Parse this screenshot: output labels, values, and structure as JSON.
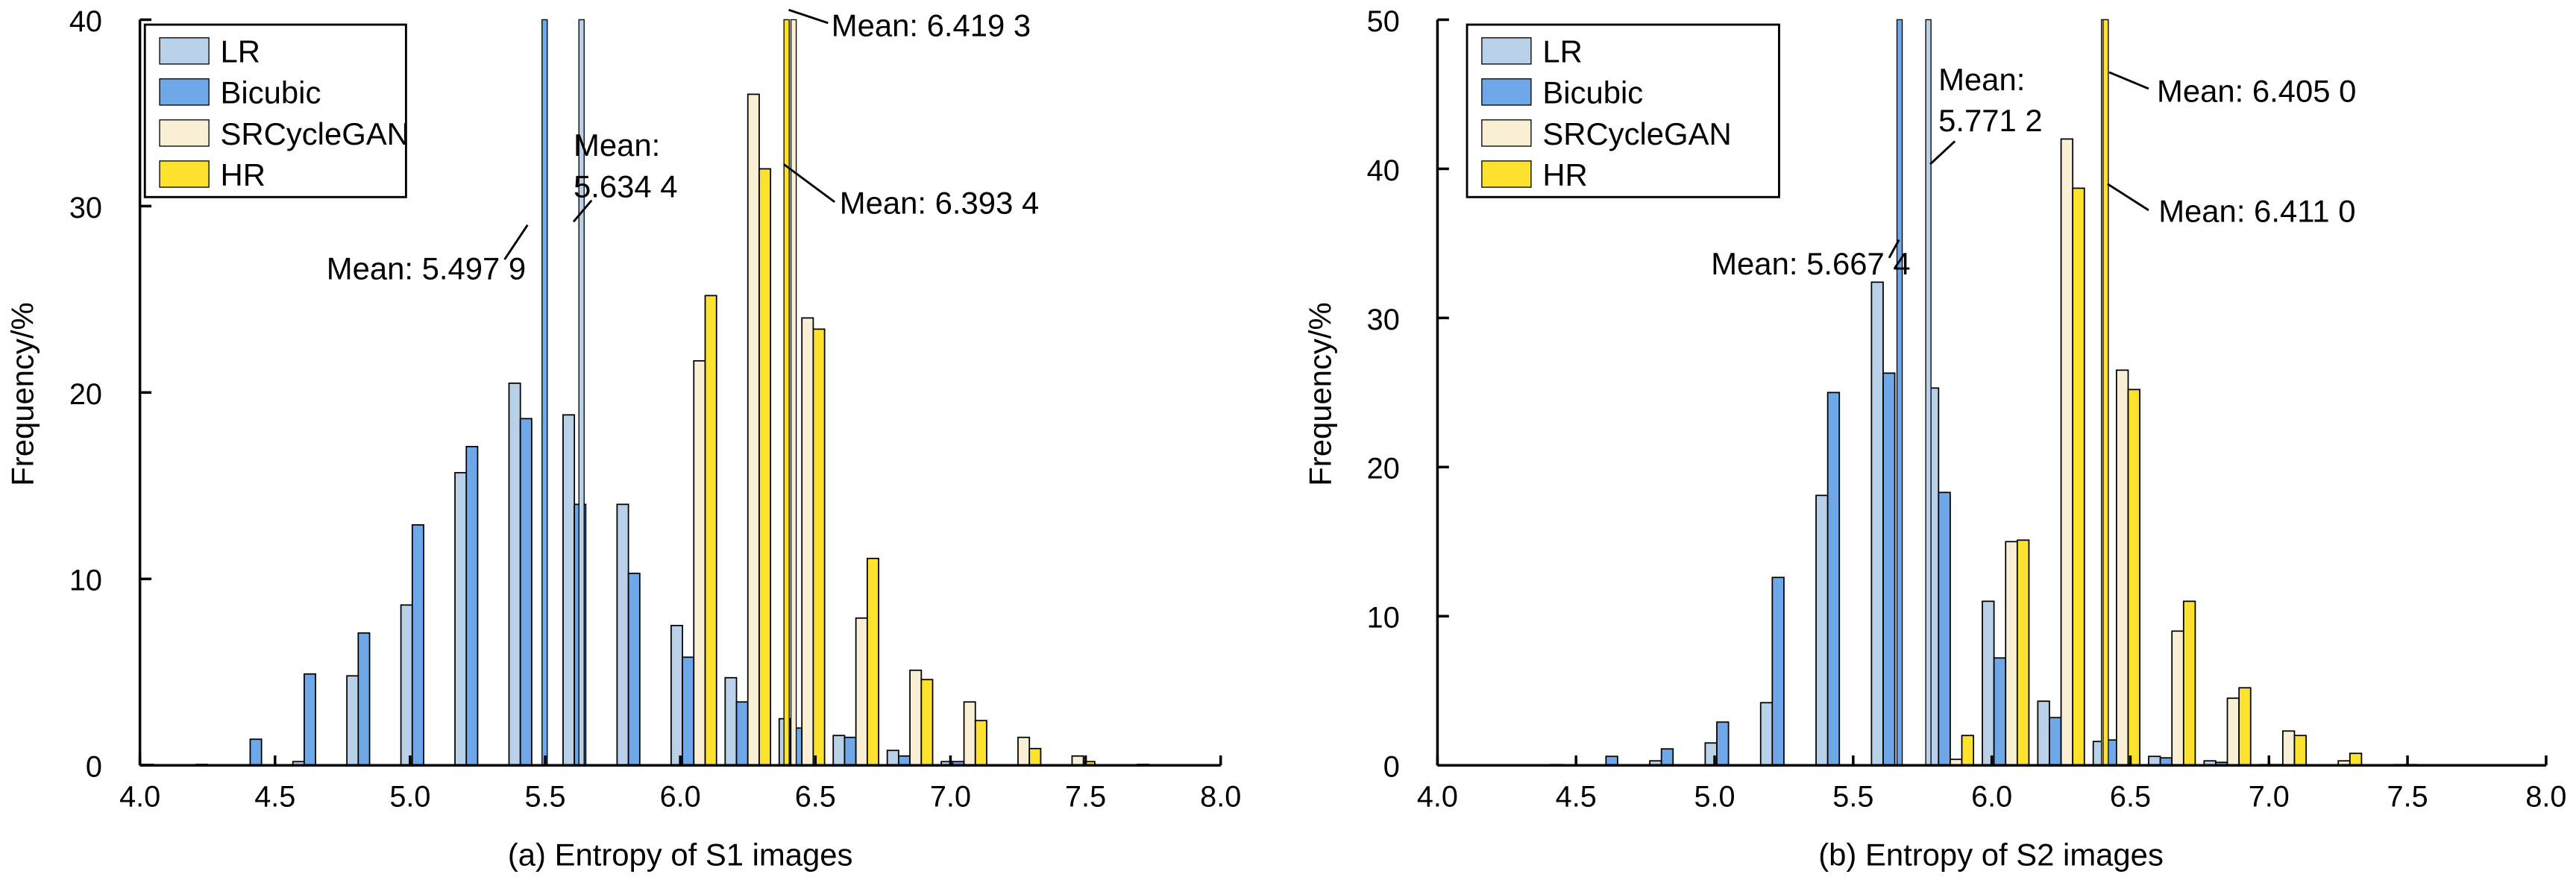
{
  "chart_data": [
    {
      "type": "bar",
      "title": "(a) Entropy of S1 images",
      "xlabel": "(a) Entropy of S1 images",
      "ylabel": "Frequency/%",
      "xlim": [
        4.0,
        8.0
      ],
      "ylim": [
        0,
        40
      ],
      "xticks": [
        "4.0",
        "4.5",
        "5.0",
        "5.5",
        "6.0",
        "6.5",
        "7.0",
        "7.5",
        "8.0"
      ],
      "yticks": [
        "0",
        "10",
        "20",
        "30",
        "40"
      ],
      "legend_position": "top-left",
      "grid": false,
      "bin_centers": [
        4.05,
        4.25,
        4.45,
        4.65,
        4.85,
        5.05,
        5.25,
        5.45,
        5.65,
        5.85,
        6.05,
        6.25,
        6.45,
        6.65,
        6.85,
        7.05,
        7.25,
        7.45,
        7.65,
        7.85
      ],
      "series": [
        {
          "name": "LR",
          "color": "#b9d1e8",
          "mean": 5.6344,
          "values": [
            0,
            0,
            0,
            0.2,
            4.8,
            8.6,
            15.7,
            20.5,
            18.8,
            14.0,
            7.5,
            4.7,
            2.5,
            1.6,
            0.8,
            0.2,
            0,
            0,
            0,
            0
          ]
        },
        {
          "name": "Bicubic",
          "color": "#6ea8e8",
          "mean": 5.4979,
          "values": [
            0.05,
            0.05,
            1.4,
            4.9,
            7.1,
            12.9,
            17.1,
            18.6,
            14.0,
            10.3,
            5.8,
            3.4,
            2.0,
            1.5,
            0.5,
            0.2,
            0,
            0,
            0,
            0
          ]
        },
        {
          "name": "SRCycleGAN",
          "color": "#f9efd4",
          "mean": 6.4193,
          "values": [
            0,
            0,
            0,
            0,
            0,
            0,
            0,
            0,
            0,
            0,
            21.7,
            36.0,
            24.0,
            7.9,
            5.1,
            3.4,
            1.5,
            0.5,
            0,
            0
          ]
        },
        {
          "name": "HR",
          "color": "#fce22c",
          "mean": 6.3934,
          "values": [
            0,
            0,
            0,
            0,
            0,
            0,
            0,
            0,
            0,
            0,
            25.2,
            32.0,
            23.4,
            11.1,
            4.6,
            2.4,
            0.9,
            0.2,
            0.05,
            0
          ]
        }
      ],
      "annotations": [
        {
          "series": "Bicubic",
          "lines": [
            "Mean: 5.497 9"
          ]
        },
        {
          "series": "LR",
          "lines": [
            "Mean:",
            "5.634 4"
          ]
        },
        {
          "series": "SRCycleGAN",
          "lines": [
            "Mean: 6.419 3"
          ]
        },
        {
          "series": "HR",
          "lines": [
            "Mean: 6.393 4"
          ]
        }
      ]
    },
    {
      "type": "bar",
      "title": "(b) Entropy of S2 images",
      "xlabel": "(b) Entropy of S2 images",
      "ylabel": "Frequency/%",
      "xlim": [
        4.0,
        8.0
      ],
      "ylim": [
        0,
        50
      ],
      "xticks": [
        "4.0",
        "4.5",
        "5.0",
        "5.5",
        "6.0",
        "6.5",
        "7.0",
        "7.5",
        "8.0"
      ],
      "yticks": [
        "0",
        "10",
        "20",
        "30",
        "40",
        "50"
      ],
      "legend_position": "top-left",
      "grid": false,
      "bin_centers": [
        4.05,
        4.25,
        4.45,
        4.65,
        4.85,
        5.05,
        5.25,
        5.45,
        5.65,
        5.85,
        6.05,
        6.25,
        6.45,
        6.65,
        6.85,
        7.05,
        7.25,
        7.45,
        7.65,
        7.85
      ],
      "series": [
        {
          "name": "LR",
          "color": "#b9d1e8",
          "mean": 5.7712,
          "values": [
            0,
            0,
            0,
            0,
            0.3,
            1.5,
            4.2,
            18.1,
            32.4,
            25.3,
            11.0,
            4.3,
            1.6,
            0.6,
            0.3,
            0.05,
            0,
            0,
            0,
            0
          ]
        },
        {
          "name": "Bicubic",
          "color": "#6ea8e8",
          "mean": 5.6674,
          "values": [
            0,
            0,
            0.05,
            0.6,
            1.1,
            2.9,
            12.6,
            25.0,
            26.3,
            18.3,
            7.2,
            3.2,
            1.7,
            0.5,
            0.2,
            0.05,
            0,
            0,
            0,
            0
          ]
        },
        {
          "name": "SRCycleGAN",
          "color": "#f9efd4",
          "mean": 6.405,
          "values": [
            0,
            0,
            0,
            0,
            0,
            0,
            0,
            0,
            0,
            0.4,
            15.0,
            42.0,
            26.5,
            9.0,
            4.5,
            2.3,
            0.3,
            0.05,
            0,
            0
          ]
        },
        {
          "name": "HR",
          "color": "#fce22c",
          "mean": 6.411,
          "values": [
            0,
            0,
            0,
            0,
            0,
            0,
            0,
            0,
            0,
            2.0,
            15.1,
            38.7,
            25.2,
            11.0,
            5.2,
            2.0,
            0.8,
            0.05,
            0,
            0
          ]
        }
      ],
      "annotations": [
        {
          "series": "Bicubic",
          "lines": [
            "Mean: 5.667 4"
          ]
        },
        {
          "series": "LR",
          "lines": [
            "Mean:",
            "5.771 2"
          ]
        },
        {
          "series": "SRCycleGAN",
          "lines": [
            "Mean: 6.405 0"
          ]
        },
        {
          "series": "HR",
          "lines": [
            "Mean: 6.411 0"
          ]
        }
      ]
    }
  ]
}
